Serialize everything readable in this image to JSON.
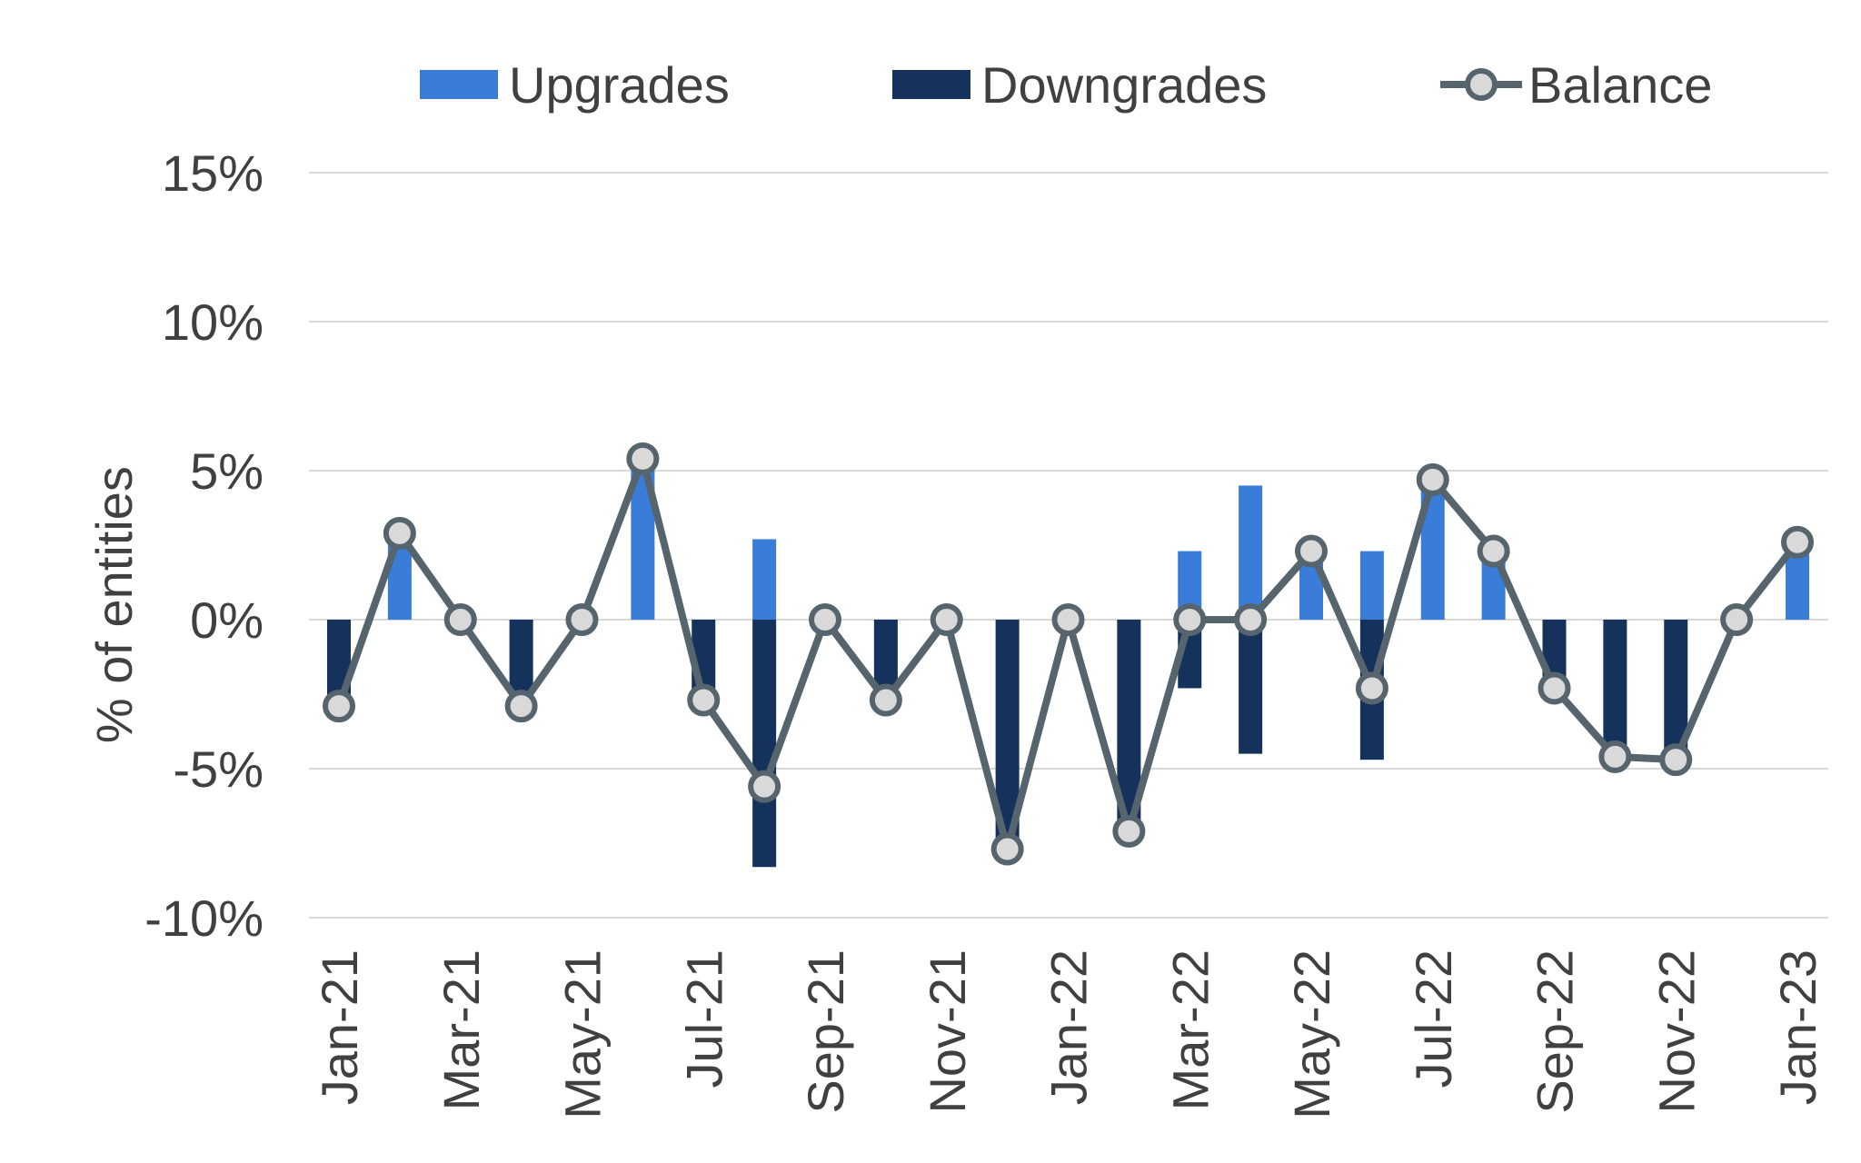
{
  "colors": {
    "upgrades": "#3A7DD8",
    "downgrades": "#15325C",
    "balance_line": "#56646D",
    "balance_marker_fill": "#D9D9D9",
    "gridline": "#D9D9D9",
    "text": "#404040"
  },
  "chart_data": {
    "type": "bar",
    "ylabel": "% of entities",
    "legend_position": "top",
    "grid": true,
    "ylim": [
      -10,
      15
    ],
    "yticks": [
      "15%",
      "10%",
      "5%",
      "0%",
      "-5%",
      "-10%"
    ],
    "ytick_values": [
      15,
      10,
      5,
      0,
      -5,
      -10
    ],
    "categories": [
      "Jan-21",
      "Feb-21",
      "Mar-21",
      "Apr-21",
      "May-21",
      "Jun-21",
      "Jul-21",
      "Aug-21",
      "Sep-21",
      "Oct-21",
      "Nov-21",
      "Dec-21",
      "Jan-22",
      "Feb-22",
      "Mar-22",
      "Apr-22",
      "May-22",
      "Jun-22",
      "Jul-22",
      "Aug-22",
      "Sep-22",
      "Oct-22",
      "Nov-22",
      "Dec-22",
      "Jan-23"
    ],
    "tick_labels_shown": [
      "Jan-21",
      "Mar-21",
      "May-21",
      "Jul-21",
      "Sep-21",
      "Nov-21",
      "Jan-22",
      "Mar-22",
      "May-22",
      "Jul-22",
      "Sep-22",
      "Nov-22",
      "Jan-23"
    ],
    "series": [
      {
        "name": "Upgrades",
        "type": "bar",
        "values": [
          0,
          2.9,
          0,
          0,
          0,
          5.4,
          0,
          2.7,
          0,
          0,
          0,
          0,
          0,
          0,
          2.3,
          4.5,
          2.3,
          2.3,
          4.7,
          2.3,
          0,
          0,
          0,
          0,
          2.6
        ]
      },
      {
        "name": "Downgrades",
        "type": "bar",
        "values": [
          -2.9,
          0,
          0,
          -2.9,
          0,
          0,
          -2.7,
          -8.3,
          0,
          -2.7,
          0,
          -7.7,
          0,
          -7.1,
          -2.3,
          -4.5,
          0,
          -4.7,
          0,
          0,
          -2.3,
          -4.6,
          -4.7,
          0,
          0
        ]
      },
      {
        "name": "Balance",
        "type": "line",
        "values": [
          -2.9,
          2.9,
          0,
          -2.9,
          0,
          5.4,
          -2.7,
          -5.6,
          0,
          -2.7,
          0,
          -7.7,
          0,
          -7.1,
          0,
          0,
          2.3,
          -2.3,
          4.7,
          2.3,
          -2.3,
          -4.6,
          -4.7,
          0,
          2.6
        ]
      }
    ]
  }
}
